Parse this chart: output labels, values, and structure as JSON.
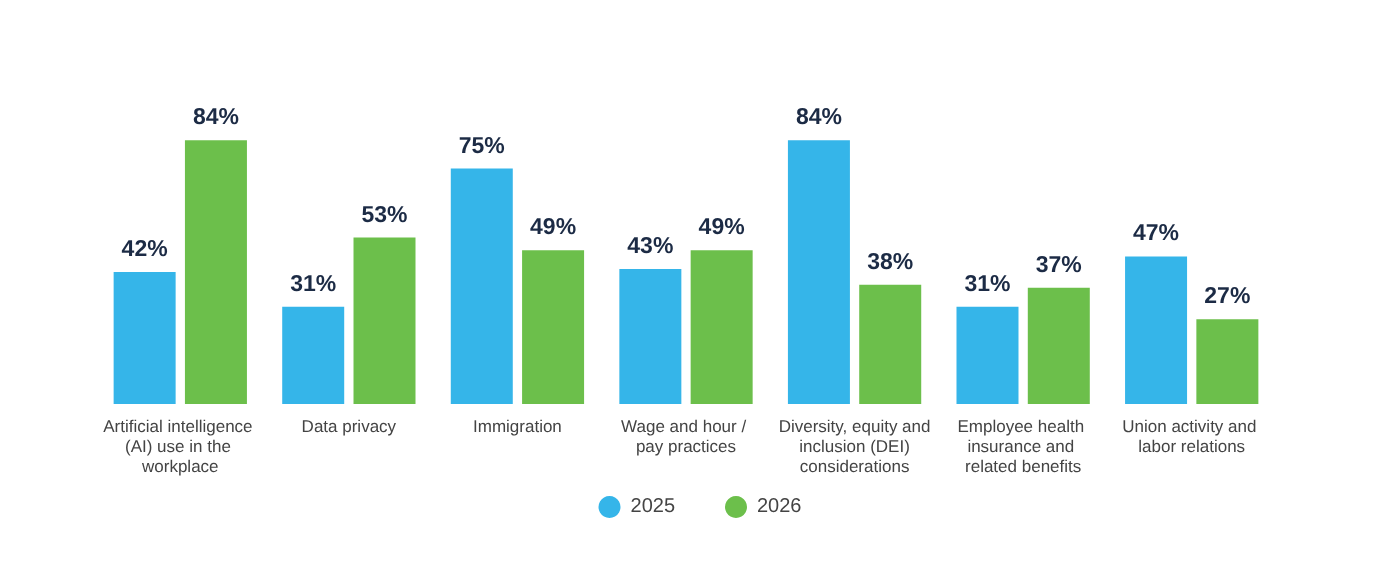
{
  "chart_data": {
    "type": "bar",
    "categories": [
      "Artificial intelligence (AI) use in the workplace",
      "Data privacy",
      "Immigration",
      "Wage and hour / pay practices",
      "Diversity, equity and inclusion (DEI) considerations",
      "Employee health insurance and related benefits",
      "Union activity and labor relations"
    ],
    "series": [
      {
        "name": "2025",
        "color": "#35b5e9",
        "values": [
          42,
          31,
          75,
          43,
          84,
          31,
          47
        ],
        "value_labels": [
          "42%",
          "31%",
          "75%",
          "43%",
          "84%",
          "31%",
          "47%"
        ]
      },
      {
        "name": "2026",
        "color": "#6cbf4b",
        "values": [
          84,
          53,
          49,
          49,
          38,
          37,
          27
        ],
        "value_labels": [
          "84%",
          "53%",
          "49%",
          "49%",
          "38%",
          "37%",
          "27%"
        ]
      }
    ],
    "legend": "bottom",
    "grid": false
  }
}
